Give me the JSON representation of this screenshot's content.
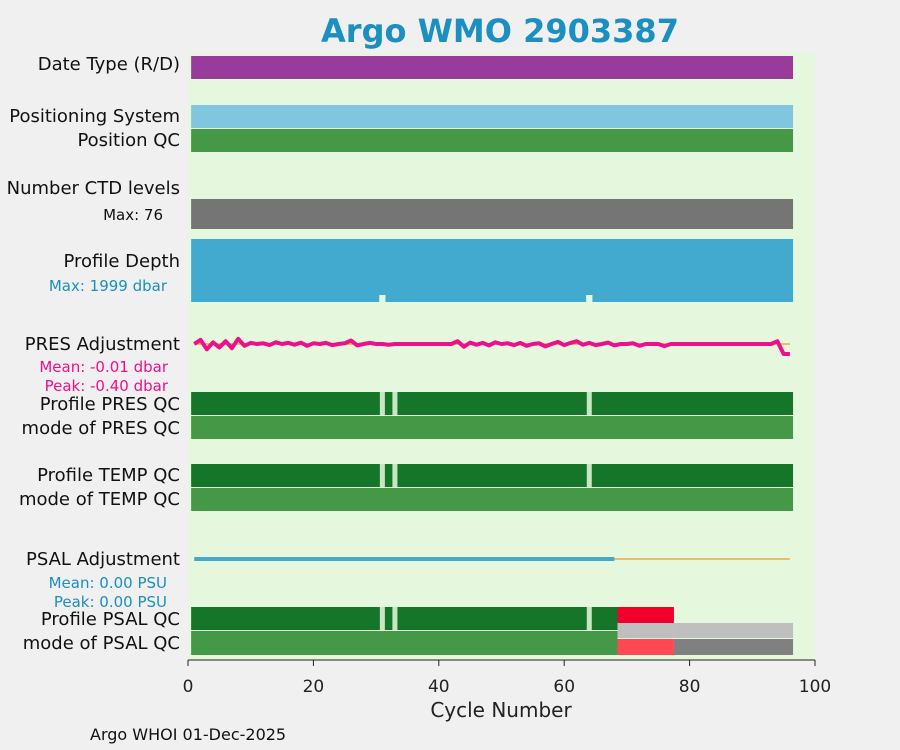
{
  "title": "Argo WMO 2903387",
  "footer": "Argo WHOI 01-Dec-2025",
  "colors": {
    "title": "#1a8fc0",
    "bg_panel": "#e5f8de",
    "date_type": "#993b9a",
    "positioning": "#80c6df",
    "qc_good": "#459845",
    "qc_dark": "#157528",
    "ctd": "#757575",
    "depth": "#42a9cf",
    "pres_line": "#ee0f8c",
    "psal_line": "#42a9cf",
    "ref_line": "#f5a835",
    "qc_bad_red": "#f2002b",
    "qc_bad_light": "#ff4851",
    "qc_grey_light": "#bfbfbf",
    "qc_grey": "#808080",
    "pres_stat_text": "#ee0f8c",
    "psal_stat_text": "#1a8fc0",
    "depth_stat_text": "#1a8fc0"
  },
  "labels": {
    "date_type": "Date Type (R/D)",
    "positioning": "Positioning System",
    "position_qc": "Position QC",
    "ctd": "Number CTD levels",
    "ctd_max": "Max: 76",
    "depth": "Profile Depth",
    "depth_max": "Max: 1999 dbar",
    "pres_adj": "PRES Adjustment",
    "pres_mean": "Mean: -0.01 dbar",
    "pres_peak": "Peak: -0.40 dbar",
    "profile_pres_qc": "Profile PRES QC",
    "mode_pres_qc": "mode of PRES QC",
    "profile_temp_qc": "Profile TEMP QC",
    "mode_temp_qc": "mode of TEMP QC",
    "psal_adj": "PSAL Adjustment",
    "psal_mean": "Mean: 0.00 PSU",
    "psal_peak": "Peak: 0.00 PSU",
    "profile_psal_qc": "Profile PSAL QC",
    "mode_psal_qc": "mode of PSAL QC"
  },
  "chart_data": {
    "type": "bar",
    "title": "Argo WMO 2903387",
    "xlabel": "Cycle Number",
    "xlim": [
      0,
      100
    ],
    "xticks": [
      0,
      20,
      40,
      60,
      80,
      100
    ],
    "cycle_range": [
      1,
      96
    ],
    "gaps_profile_qc": [
      31,
      33,
      64
    ],
    "psal_qc_segments": {
      "profile": [
        {
          "from": 1,
          "to": 68,
          "qc": "good"
        },
        {
          "from": 69,
          "to": 77,
          "qc": "bad"
        }
      ],
      "mode": [
        {
          "from": 1,
          "to": 68,
          "qc": "good"
        },
        {
          "from": 69,
          "to": 77,
          "qc": "bad_light_over_red"
        },
        {
          "from": 78,
          "to": 96,
          "qc": "grey_light_over_grey"
        }
      ]
    },
    "pres_adjustment": {
      "mean": -0.01,
      "peak": -0.4,
      "values": [
        0,
        0.12,
        -0.15,
        0.05,
        -0.1,
        0.08,
        -0.12,
        0.15,
        -0.05,
        0.03,
        0.0,
        0.02,
        -0.03,
        0.05,
        0.0,
        0.03,
        -0.02,
        0.04,
        -0.05,
        0.02,
        0.0,
        0.03,
        -0.03,
        0.0,
        0.02,
        0.1,
        -0.04,
        0.0,
        0.03,
        0.0,
        0.0,
        -0.02,
        0.0,
        0.0,
        0.0,
        0.0,
        0.0,
        0.0,
        0.0,
        0.0,
        0.0,
        0.0,
        0.08,
        -0.08,
        0.04,
        -0.02,
        0.03,
        -0.04,
        0.05,
        0.0,
        0.02,
        -0.03,
        0.03,
        -0.05,
        0.0,
        0.02,
        -0.07,
        0.0,
        0.06,
        -0.03,
        0.03,
        0.08,
        -0.02,
        0.03,
        -0.03,
        0.0,
        0.04,
        -0.04,
        0.0,
        0.0,
        0.02,
        -0.05,
        0.0,
        0.0,
        0.0,
        -0.06,
        0.0,
        0.0,
        0.0,
        0.0,
        0.0,
        0.0,
        0.0,
        0.0,
        0.0,
        0.0,
        0.0,
        0.0,
        0.0,
        0.0,
        0.0,
        0.0,
        0.0,
        0.08,
        -0.4,
        -0.4
      ]
    },
    "psal_adjustment": {
      "mean": 0.0,
      "peak": 0.0,
      "adjusted_until": 68
    },
    "ctd_levels_max": 76,
    "depth_max": 1999
  }
}
